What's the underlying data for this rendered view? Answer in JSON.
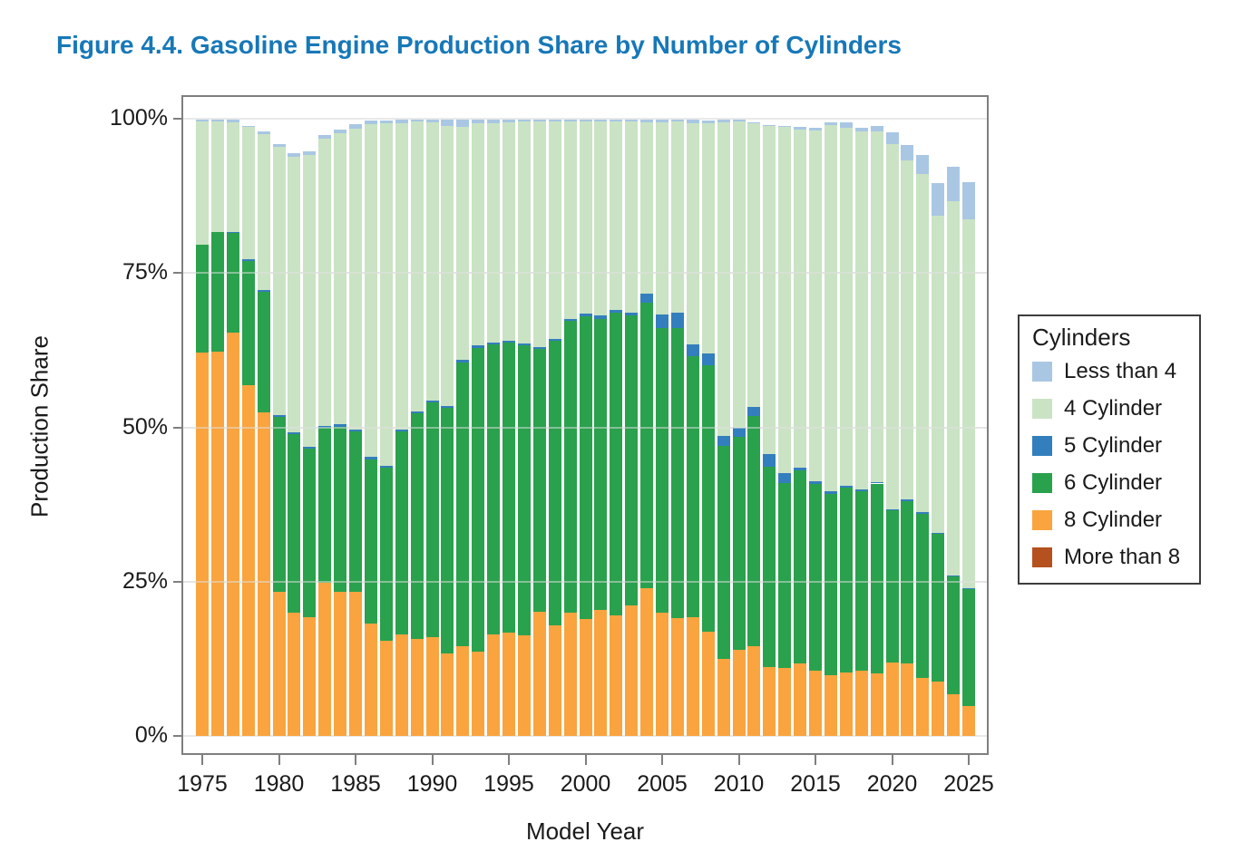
{
  "figure": {
    "title": "Figure 4.4. Gasoline Engine Production Share by Number of Cylinders",
    "title_color": "#1778b8"
  },
  "chart_data": {
    "type": "bar",
    "subtype": "stacked-percent",
    "title": "Figure 4.4. Gasoline Engine Production Share by Number of Cylinders",
    "xlabel": "Model Year",
    "ylabel": "Production Share",
    "ylim": [
      0,
      100
    ],
    "y_tick_labels": [
      "0%",
      "25%",
      "50%",
      "75%",
      "100%"
    ],
    "y_tick_values": [
      0,
      25,
      50,
      75,
      100
    ],
    "x_tick_years": [
      1975,
      1980,
      1985,
      1990,
      1995,
      2000,
      2005,
      2010,
      2015,
      2020,
      2025
    ],
    "grid": "horizontal",
    "legend_position": "right",
    "legend_title": "Cylinders",
    "years": [
      1975,
      1976,
      1977,
      1978,
      1979,
      1980,
      1981,
      1982,
      1983,
      1984,
      1985,
      1986,
      1987,
      1988,
      1989,
      1990,
      1991,
      1992,
      1993,
      1994,
      1995,
      1996,
      1997,
      1998,
      1999,
      2000,
      2001,
      2002,
      2003,
      2004,
      2005,
      2006,
      2007,
      2008,
      2009,
      2010,
      2011,
      2012,
      2013,
      2014,
      2015,
      2016,
      2017,
      2018,
      2019,
      2020,
      2021,
      2022,
      2023,
      2024,
      2025
    ],
    "stack_order_bottom_to_top": [
      "more_than_8",
      "cyl8",
      "cyl6",
      "cyl5",
      "cyl4",
      "less_than_4"
    ],
    "colors": {
      "less_than_4": "#a9c7e3",
      "cyl4": "#cae3c4",
      "cyl5": "#337fbd",
      "cyl6": "#2aa14d",
      "cyl8": "#f9a43f",
      "more_than_8": "#b5511f"
    },
    "series": [
      {
        "key": "less_than_4",
        "name": "Less than 4",
        "values": [
          0.4,
          0.3,
          0.5,
          0.2,
          0.5,
          0.5,
          0.5,
          0.5,
          0.5,
          0.6,
          0.7,
          0.6,
          0.5,
          0.5,
          0.4,
          0.5,
          1.0,
          1.1,
          0.7,
          0.6,
          0.5,
          0.25,
          0.4,
          0.3,
          0.3,
          0.3,
          0.3,
          0.3,
          0.3,
          0.4,
          0.4,
          0.3,
          0.5,
          0.4,
          0.4,
          0.3,
          0.2,
          0.1,
          0.1,
          0.4,
          0.5,
          0.4,
          0.8,
          0.6,
          0.8,
          1.9,
          2.6,
          3.1,
          5.3,
          5.5,
          6.0
        ]
      },
      {
        "key": "cyl4",
        "name": "4 Cylinder",
        "values": [
          19.9,
          18.0,
          17.7,
          21.4,
          25.2,
          43.4,
          44.7,
          47.3,
          46.6,
          47.2,
          48.7,
          53.9,
          55.5,
          49.7,
          46.9,
          45.0,
          45.3,
          37.8,
          35.9,
          35.6,
          35.4,
          36.0,
          36.5,
          35.3,
          32.0,
          31.1,
          31.4,
          30.6,
          31.0,
          27.7,
          31.1,
          30.9,
          35.9,
          37.3,
          50.8,
          49.5,
          45.9,
          53.2,
          56.2,
          54.8,
          56.9,
          59.4,
          58.1,
          57.9,
          56.9,
          59.2,
          54.9,
          54.8,
          51.4,
          60.7,
          59.7
        ]
      },
      {
        "key": "cyl5",
        "name": "5 Cylinder",
        "values": [
          0,
          0,
          0.2,
          0.3,
          0.3,
          0.3,
          0.3,
          0.3,
          0.3,
          0.4,
          0.4,
          0.4,
          0.3,
          0.3,
          0.3,
          0.3,
          0.3,
          0.4,
          0.4,
          0.3,
          0.3,
          0.3,
          0.3,
          0.3,
          0.4,
          0.5,
          0.6,
          0.4,
          0.5,
          1.5,
          2.2,
          2.5,
          1.8,
          2.0,
          1.6,
          1.5,
          1.5,
          2.1,
          1.6,
          0.4,
          0.4,
          0.4,
          0.3,
          0.3,
          0.2,
          0.2,
          0.2,
          0.2,
          0.1,
          0.1,
          0.1
        ]
      },
      {
        "key": "cyl6",
        "name": "6 Cylinder",
        "values": [
          17.5,
          19.3,
          16.1,
          20.2,
          19.6,
          28.4,
          28.9,
          27.4,
          25.1,
          26.7,
          26.0,
          26.6,
          28.0,
          32.8,
          36.6,
          38.1,
          39.9,
          45.9,
          49.2,
          46.9,
          46.9,
          47.0,
          42.6,
          46.1,
          47.2,
          49.1,
          47.2,
          49.0,
          46.9,
          46.3,
          46.1,
          47.0,
          42.4,
          43.1,
          34.5,
          34.6,
          37.3,
          32.5,
          30.0,
          31.4,
          30.2,
          29.3,
          29.9,
          29.1,
          30.8,
          24.6,
          26.4,
          26.6,
          24.0,
          19.1,
          19.0
        ]
      },
      {
        "key": "cyl8",
        "name": "8 Cylinder",
        "values": [
          62.1,
          62.3,
          65.4,
          56.8,
          52.4,
          23.3,
          20.0,
          19.2,
          24.8,
          23.4,
          23.3,
          18.2,
          15.4,
          16.5,
          15.7,
          16.0,
          13.3,
          14.6,
          13.7,
          16.5,
          16.8,
          16.3,
          20.1,
          17.9,
          20.0,
          18.9,
          20.4,
          19.6,
          21.2,
          23.9,
          20.0,
          19.1,
          19.2,
          16.9,
          12.5,
          13.9,
          14.5,
          11.1,
          11.0,
          11.7,
          10.6,
          9.9,
          10.3,
          10.6,
          10.1,
          11.9,
          11.7,
          9.4,
          8.8,
          6.8,
          4.9
        ]
      },
      {
        "key": "more_than_8",
        "name": "More than 8",
        "values": [
          0,
          0,
          0,
          0,
          0,
          0,
          0,
          0,
          0,
          0,
          0,
          0,
          0,
          0,
          0,
          0,
          0,
          0,
          0,
          0,
          0,
          0,
          0,
          0,
          0,
          0,
          0,
          0,
          0,
          0,
          0,
          0,
          0,
          0,
          0,
          0,
          0,
          0,
          0,
          0,
          0,
          0,
          0,
          0,
          0,
          0,
          0,
          0,
          0,
          0,
          0
        ]
      }
    ],
    "legend_entries": [
      {
        "key": "less_than_4",
        "label": "Less than 4"
      },
      {
        "key": "cyl4",
        "label": "4 Cylinder"
      },
      {
        "key": "cyl5",
        "label": "5 Cylinder"
      },
      {
        "key": "cyl6",
        "label": "6 Cylinder"
      },
      {
        "key": "cyl8",
        "label": "8 Cylinder"
      },
      {
        "key": "more_than_8",
        "label": "More than 8"
      }
    ]
  }
}
